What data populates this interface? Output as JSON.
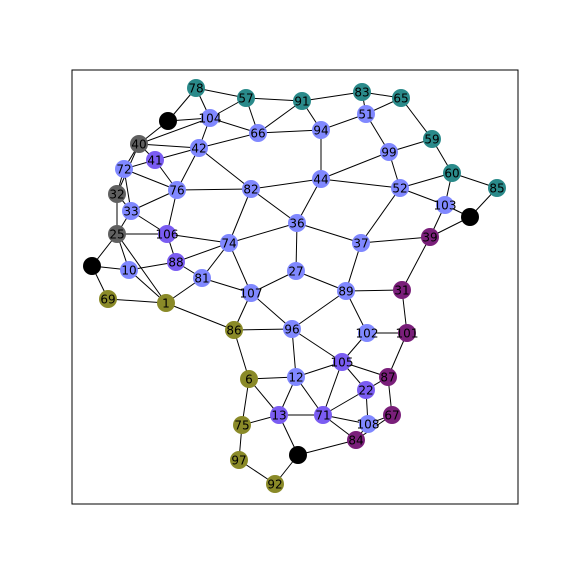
{
  "colors": {
    "teal": "#2a8a8a",
    "periwinkle": "#8088ff",
    "violet": "#7a5cf2",
    "magenta": "#7a1f7a",
    "olive": "#8a8a28",
    "gray": "#606060",
    "black": "#000000"
  },
  "graph": {
    "nodes": [
      {
        "id": "78",
        "label": "78",
        "color": "teal"
      },
      {
        "id": "57",
        "label": "57",
        "color": "teal"
      },
      {
        "id": "91",
        "label": "91",
        "color": "teal"
      },
      {
        "id": "83",
        "label": "83",
        "color": "teal"
      },
      {
        "id": "65",
        "label": "65",
        "color": "teal"
      },
      {
        "id": "59",
        "label": "59",
        "color": "teal"
      },
      {
        "id": "60",
        "label": "60",
        "color": "teal"
      },
      {
        "id": "85",
        "label": "85",
        "color": "teal"
      },
      {
        "id": "104",
        "label": "104",
        "color": "periwinkle"
      },
      {
        "id": "66",
        "label": "66",
        "color": "periwinkle"
      },
      {
        "id": "94",
        "label": "94",
        "color": "periwinkle"
      },
      {
        "id": "51",
        "label": "51",
        "color": "periwinkle"
      },
      {
        "id": "99",
        "label": "99",
        "color": "periwinkle"
      },
      {
        "id": "42",
        "label": "42",
        "color": "periwinkle"
      },
      {
        "id": "41",
        "label": "41",
        "color": "violet"
      },
      {
        "id": "72",
        "label": "72",
        "color": "periwinkle"
      },
      {
        "id": "76",
        "label": "76",
        "color": "periwinkle"
      },
      {
        "id": "82",
        "label": "82",
        "color": "periwinkle"
      },
      {
        "id": "44",
        "label": "44",
        "color": "periwinkle"
      },
      {
        "id": "52",
        "label": "52",
        "color": "periwinkle"
      },
      {
        "id": "103",
        "label": "103",
        "color": "periwinkle"
      },
      {
        "id": "33",
        "label": "33",
        "color": "periwinkle"
      },
      {
        "id": "106",
        "label": "106",
        "color": "violet"
      },
      {
        "id": "36",
        "label": "36",
        "color": "periwinkle"
      },
      {
        "id": "37",
        "label": "37",
        "color": "periwinkle"
      },
      {
        "id": "74",
        "label": "74",
        "color": "periwinkle"
      },
      {
        "id": "10",
        "label": "10",
        "color": "periwinkle"
      },
      {
        "id": "88",
        "label": "88",
        "color": "violet"
      },
      {
        "id": "81",
        "label": "81",
        "color": "periwinkle"
      },
      {
        "id": "27",
        "label": "27",
        "color": "periwinkle"
      },
      {
        "id": "89",
        "label": "89",
        "color": "periwinkle"
      },
      {
        "id": "107",
        "label": "107",
        "color": "periwinkle"
      },
      {
        "id": "96",
        "label": "96",
        "color": "periwinkle"
      },
      {
        "id": "102",
        "label": "102",
        "color": "periwinkle"
      },
      {
        "id": "105",
        "label": "105",
        "color": "violet"
      },
      {
        "id": "12",
        "label": "12",
        "color": "periwinkle"
      },
      {
        "id": "22",
        "label": "22",
        "color": "violet"
      },
      {
        "id": "13",
        "label": "13",
        "color": "violet"
      },
      {
        "id": "71",
        "label": "71",
        "color": "violet"
      },
      {
        "id": "108",
        "label": "108",
        "color": "periwinkle"
      },
      {
        "id": "40",
        "label": "40",
        "color": "gray"
      },
      {
        "id": "32",
        "label": "32",
        "color": "gray"
      },
      {
        "id": "25",
        "label": "25",
        "color": "gray"
      },
      {
        "id": "39",
        "label": "39",
        "color": "magenta"
      },
      {
        "id": "31",
        "label": "31",
        "color": "magenta"
      },
      {
        "id": "101",
        "label": "101",
        "color": "magenta"
      },
      {
        "id": "87",
        "label": "87",
        "color": "magenta"
      },
      {
        "id": "67",
        "label": "67",
        "color": "magenta"
      },
      {
        "id": "84",
        "label": "84",
        "color": "magenta"
      },
      {
        "id": "69",
        "label": "69",
        "color": "olive"
      },
      {
        "id": "1",
        "label": "1",
        "color": "olive"
      },
      {
        "id": "86",
        "label": "86",
        "color": "olive"
      },
      {
        "id": "6",
        "label": "6",
        "color": "olive"
      },
      {
        "id": "75",
        "label": "75",
        "color": "olive"
      },
      {
        "id": "97",
        "label": "97",
        "color": "olive"
      },
      {
        "id": "92",
        "label": "92",
        "color": "olive"
      },
      {
        "id": "b1",
        "label": "",
        "color": "black"
      },
      {
        "id": "b2",
        "label": "",
        "color": "black"
      },
      {
        "id": "b3",
        "label": "",
        "color": "black"
      },
      {
        "id": "b4",
        "label": "",
        "color": "black"
      }
    ],
    "edges": [
      [
        "78",
        "b1"
      ],
      [
        "78",
        "104"
      ],
      [
        "78",
        "57"
      ],
      [
        "b1",
        "104"
      ],
      [
        "b1",
        "40"
      ],
      [
        "57",
        "104"
      ],
      [
        "57",
        "66"
      ],
      [
        "57",
        "91"
      ],
      [
        "91",
        "66"
      ],
      [
        "91",
        "94"
      ],
      [
        "91",
        "83"
      ],
      [
        "83",
        "65"
      ],
      [
        "83",
        "51"
      ],
      [
        "65",
        "51"
      ],
      [
        "65",
        "59"
      ],
      [
        "104",
        "66"
      ],
      [
        "104",
        "42"
      ],
      [
        "104",
        "40"
      ],
      [
        "66",
        "94"
      ],
      [
        "66",
        "42"
      ],
      [
        "94",
        "51"
      ],
      [
        "94",
        "44"
      ],
      [
        "51",
        "99"
      ],
      [
        "59",
        "99"
      ],
      [
        "59",
        "60"
      ],
      [
        "60",
        "85"
      ],
      [
        "60",
        "103"
      ],
      [
        "60",
        "52"
      ],
      [
        "85",
        "b2"
      ],
      [
        "b2",
        "103"
      ],
      [
        "b2",
        "39"
      ],
      [
        "99",
        "52"
      ],
      [
        "99",
        "44"
      ],
      [
        "42",
        "40"
      ],
      [
        "42",
        "41"
      ],
      [
        "42",
        "76"
      ],
      [
        "42",
        "82"
      ],
      [
        "40",
        "72"
      ],
      [
        "40",
        "41"
      ],
      [
        "40",
        "32"
      ],
      [
        "41",
        "72"
      ],
      [
        "41",
        "76"
      ],
      [
        "72",
        "32"
      ],
      [
        "72",
        "33"
      ],
      [
        "72",
        "76"
      ],
      [
        "76",
        "33"
      ],
      [
        "76",
        "106"
      ],
      [
        "76",
        "82"
      ],
      [
        "82",
        "44"
      ],
      [
        "82",
        "36"
      ],
      [
        "82",
        "74"
      ],
      [
        "44",
        "52"
      ],
      [
        "44",
        "36"
      ],
      [
        "52",
        "103"
      ],
      [
        "52",
        "37"
      ],
      [
        "103",
        "39"
      ],
      [
        "32",
        "33"
      ],
      [
        "32",
        "25"
      ],
      [
        "33",
        "25"
      ],
      [
        "33",
        "106"
      ],
      [
        "25",
        "106"
      ],
      [
        "25",
        "b3"
      ],
      [
        "25",
        "10"
      ],
      [
        "25",
        "1"
      ],
      [
        "106",
        "74"
      ],
      [
        "106",
        "88"
      ],
      [
        "36",
        "74"
      ],
      [
        "36",
        "27"
      ],
      [
        "36",
        "37"
      ],
      [
        "37",
        "39"
      ],
      [
        "37",
        "89"
      ],
      [
        "39",
        "31"
      ],
      [
        "74",
        "88"
      ],
      [
        "74",
        "81"
      ],
      [
        "74",
        "107"
      ],
      [
        "b3",
        "10"
      ],
      [
        "b3",
        "69"
      ],
      [
        "10",
        "88"
      ],
      [
        "10",
        "1"
      ],
      [
        "88",
        "81"
      ],
      [
        "81",
        "1"
      ],
      [
        "81",
        "107"
      ],
      [
        "27",
        "107"
      ],
      [
        "27",
        "89"
      ],
      [
        "89",
        "31"
      ],
      [
        "89",
        "102"
      ],
      [
        "89",
        "96"
      ],
      [
        "31",
        "101"
      ],
      [
        "107",
        "86"
      ],
      [
        "107",
        "96"
      ],
      [
        "69",
        "1"
      ],
      [
        "1",
        "86"
      ],
      [
        "86",
        "96"
      ],
      [
        "86",
        "6"
      ],
      [
        "96",
        "105"
      ],
      [
        "96",
        "12"
      ],
      [
        "102",
        "101"
      ],
      [
        "102",
        "105"
      ],
      [
        "101",
        "87"
      ],
      [
        "105",
        "87"
      ],
      [
        "105",
        "22"
      ],
      [
        "105",
        "12"
      ],
      [
        "105",
        "71"
      ],
      [
        "87",
        "22"
      ],
      [
        "87",
        "67"
      ],
      [
        "6",
        "12"
      ],
      [
        "6",
        "13"
      ],
      [
        "6",
        "75"
      ],
      [
        "12",
        "13"
      ],
      [
        "12",
        "71"
      ],
      [
        "22",
        "71"
      ],
      [
        "22",
        "108"
      ],
      [
        "67",
        "108"
      ],
      [
        "67",
        "84"
      ],
      [
        "13",
        "71"
      ],
      [
        "13",
        "75"
      ],
      [
        "13",
        "b4"
      ],
      [
        "71",
        "84"
      ],
      [
        "71",
        "108"
      ],
      [
        "108",
        "84"
      ],
      [
        "84",
        "b4"
      ],
      [
        "75",
        "97"
      ],
      [
        "97",
        "92"
      ],
      [
        "b4",
        "92"
      ]
    ]
  }
}
